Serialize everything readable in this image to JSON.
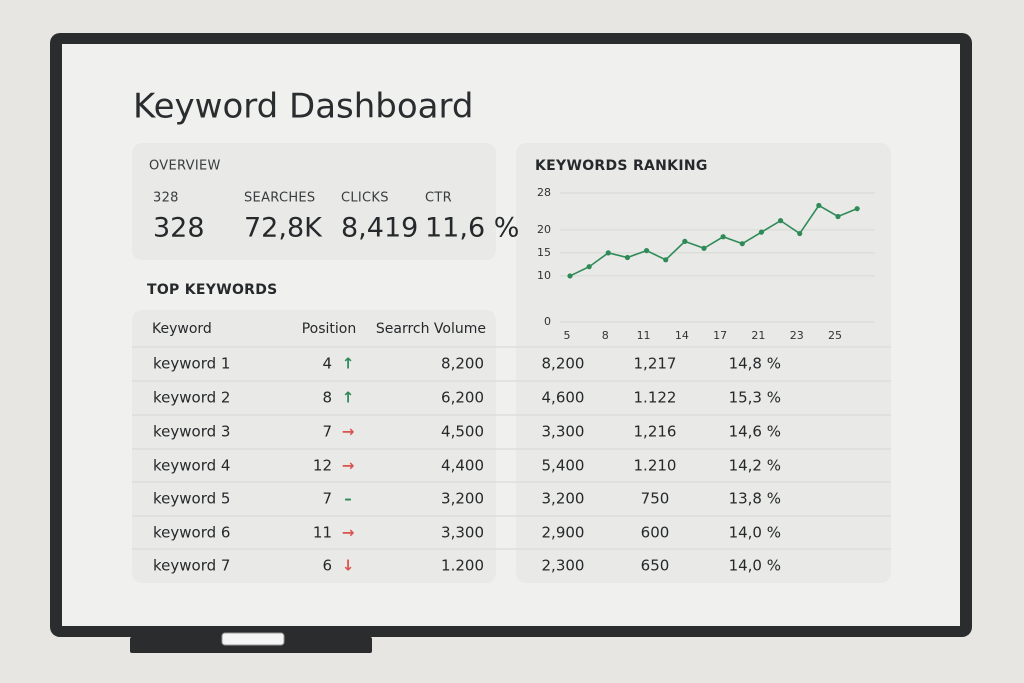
{
  "header": {
    "title": "Keyword Dashboard"
  },
  "overview": {
    "title": "OVERVIEW",
    "metrics": [
      {
        "label": "328",
        "value": "328"
      },
      {
        "label": "SEARCHES",
        "value": "72,8K"
      },
      {
        "label": "CLICKS",
        "value": "8,419"
      },
      {
        "label": "CTR",
        "value": "11,6 %"
      }
    ]
  },
  "table": {
    "title": "TOP KEYWORDS",
    "headers": [
      "Keyword",
      "Position",
      "Searrch Volume"
    ],
    "rows": [
      [
        "keyword 1",
        "4",
        "↑",
        "8,200",
        "8,200",
        "1,217",
        "14,8 %"
      ],
      [
        "keyword 2",
        "8",
        "↑",
        "6,200",
        "4,600",
        "1.122",
        "15,3 %"
      ],
      [
        "keyword 3",
        "7",
        "→",
        "4,500",
        "3,300",
        "1,216",
        "14,6 %"
      ],
      [
        "keyword 4",
        "12",
        "→",
        "4,400",
        "5,400",
        "1.210",
        "14,2 %"
      ],
      [
        "keyword 5",
        "7",
        "–",
        "3,200",
        "3,200",
        "750",
        "13,8 %"
      ],
      [
        "keyword 6",
        "11",
        "→",
        "3,300",
        "2,900",
        "600",
        "14,0 %"
      ],
      [
        "keyword 7",
        "6",
        "↓",
        "1.200",
        "2,300",
        "650",
        "14,0 %"
      ]
    ],
    "arrow_colors": [
      "#2e8b57",
      "#2e8b57",
      "#d9534f",
      "#d9534f",
      "#2e8b57",
      "#d9534f",
      "#d9534f"
    ]
  },
  "chart_data": {
    "type": "line",
    "title": "KEYWORDS RANKING",
    "categories": [
      "5",
      null,
      "8",
      null,
      "11",
      null,
      "14",
      null,
      "17",
      null,
      "21",
      null,
      "23",
      null,
      "25",
      null
    ],
    "values": [
      10,
      12,
      15,
      14,
      15.5,
      13.5,
      17.5,
      16,
      18.5,
      17,
      19.5,
      22,
      19.2,
      25.3,
      22.9,
      24.6
    ],
    "color": "#2e8b57",
    "ylim": [
      0,
      28
    ],
    "yticks": [
      0,
      10,
      15,
      20,
      28
    ],
    "grid": true
  }
}
